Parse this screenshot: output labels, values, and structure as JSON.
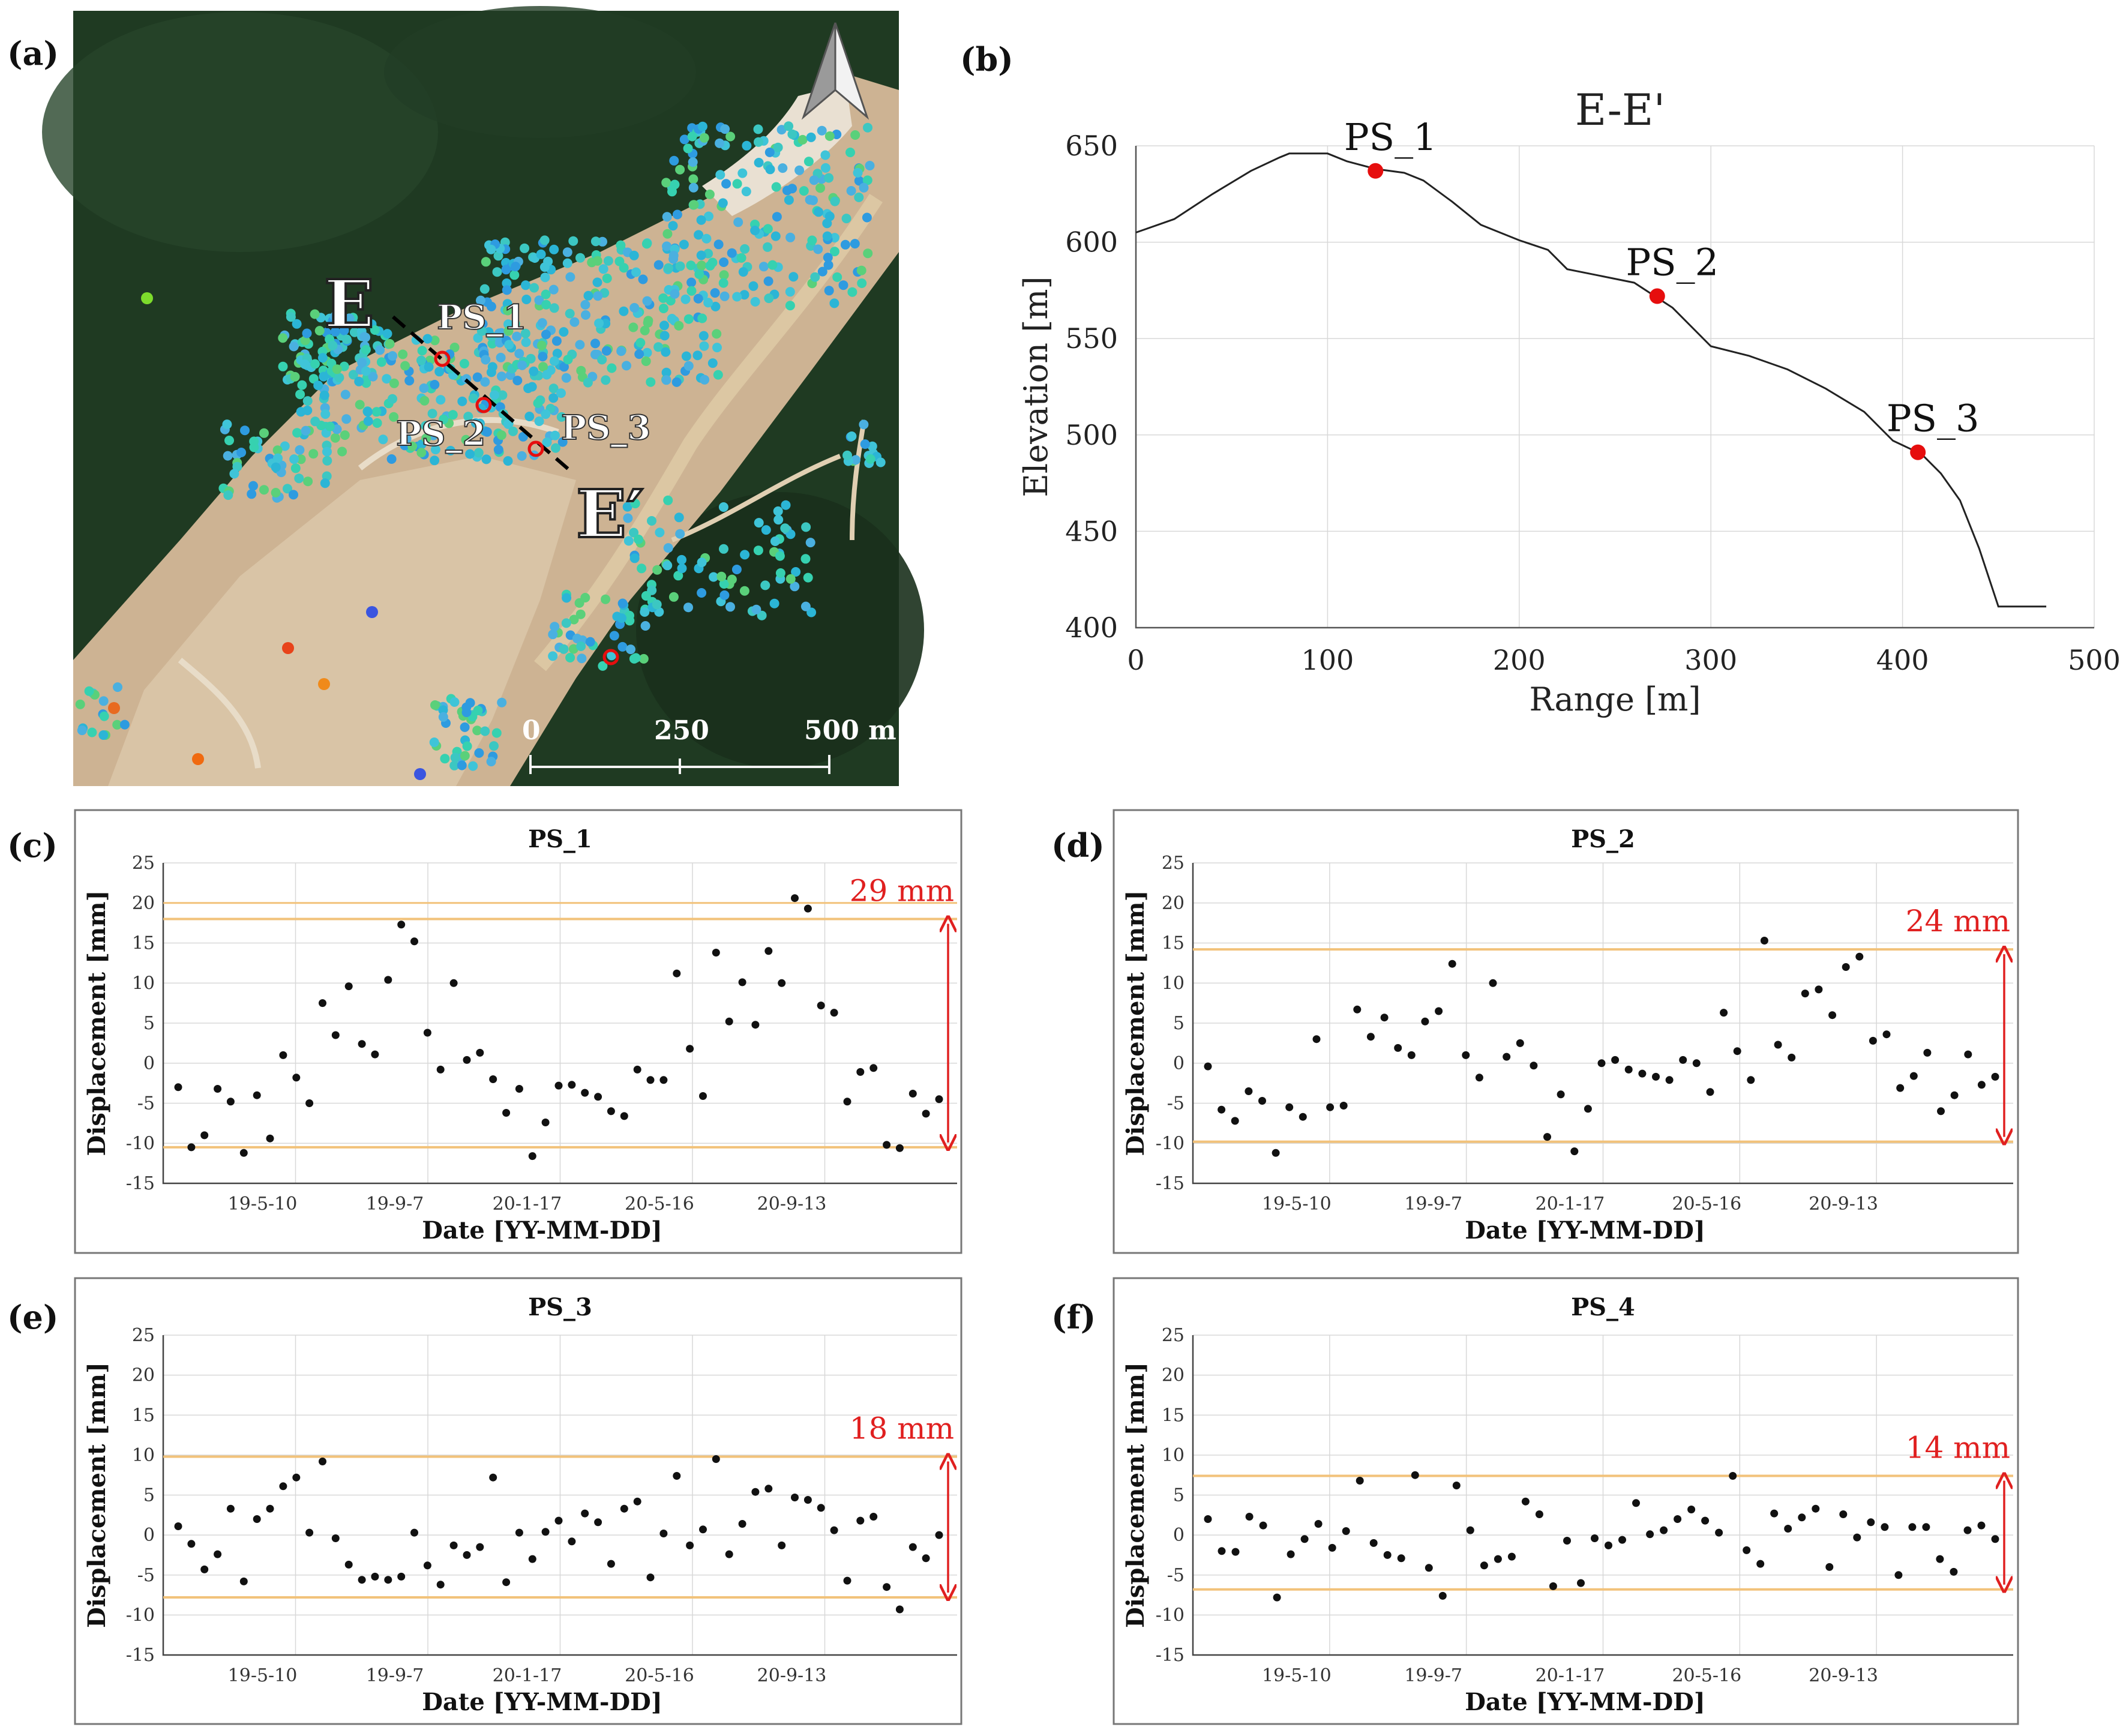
{
  "colors": {
    "accent_red": "#e02020",
    "band_orange": "#f2c27a",
    "grid": "#d8d8d8",
    "profile_line": "#222222",
    "marker_red": "#e60e0e"
  },
  "map_panel": {
    "label": "(a)",
    "section_start": "E",
    "section_end": "E′",
    "points": [
      "PS_1",
      "PS_2",
      "PS_3"
    ],
    "scale_labels": [
      "0",
      "250",
      "500 m"
    ],
    "north_icon": "north-arrow-icon"
  },
  "chart_data": [
    {
      "panel": "(b)",
      "type": "line",
      "title": "E-E'",
      "xlabel": "Range [m]",
      "ylabel": "Elevation [m]",
      "xlim": [
        0,
        500
      ],
      "ylim": [
        400,
        650
      ],
      "xticks": [
        0,
        100,
        200,
        300,
        400,
        500
      ],
      "yticks": [
        400,
        450,
        500,
        550,
        600,
        650
      ],
      "profile": {
        "x": [
          0,
          20,
          40,
          60,
          75,
          80,
          100,
          110,
          125,
          140,
          150,
          165,
          180,
          200,
          215,
          225,
          240,
          260,
          280,
          300,
          320,
          340,
          360,
          380,
          395,
          410,
          420,
          430,
          440,
          450,
          475
        ],
        "y": [
          605,
          612,
          625,
          637,
          644,
          646,
          646,
          642,
          638,
          636,
          632,
          621,
          609,
          601,
          596,
          586,
          583,
          579,
          566,
          546,
          541,
          534,
          524,
          512,
          497,
          490,
          480,
          466,
          441,
          411,
          411
        ]
      },
      "points": [
        {
          "name": "PS_1",
          "x": 125,
          "y": 637
        },
        {
          "name": "PS_2",
          "x": 272,
          "y": 572
        },
        {
          "name": "PS_3",
          "x": 408,
          "y": 491
        }
      ]
    },
    {
      "panel": "(c)",
      "type": "scatter",
      "title": "PS_1",
      "xlabel": "Date [YY-MM-DD]",
      "ylabel": "Displacement [mm]",
      "ylim": [
        -15,
        25
      ],
      "yticks": [
        -15,
        -10,
        -5,
        0,
        5,
        10,
        15,
        20,
        25
      ],
      "xticks": [
        "19-5-10",
        "19-9-7",
        "20-1-17",
        "20-5-16",
        "20-9-13"
      ],
      "band": [
        -10.5,
        18
      ],
      "band_label": "29 mm",
      "values": [
        -3,
        -10.5,
        -9,
        -3.2,
        -4.8,
        -11.2,
        -4,
        -9.4,
        1,
        -1.8,
        -5,
        7.5,
        3.5,
        9.6,
        2.4,
        1.1,
        10.4,
        17.3,
        15.2,
        3.8,
        -0.8,
        10,
        0.4,
        1.3,
        -2,
        -6.2,
        -3.2,
        -11.6,
        -7.4,
        -2.8,
        -2.7,
        -3.7,
        -4.2,
        -6,
        -6.6,
        -0.8,
        -2.1,
        -2.1,
        11.2,
        1.8,
        -4.1,
        13.8,
        5.2,
        10.1,
        4.8,
        14,
        10,
        20.6,
        19.3,
        7.2,
        6.3,
        -4.8,
        -1.1,
        -0.6,
        -10.2,
        -10.6,
        -3.8,
        -6.3,
        -4.5
      ]
    },
    {
      "panel": "(d)",
      "type": "scatter",
      "title": "PS_2",
      "xlabel": "Date [YY-MM-DD]",
      "ylabel": "Displacement [mm]",
      "ylim": [
        -15,
        25
      ],
      "yticks": [
        -15,
        -10,
        -5,
        0,
        5,
        10,
        15,
        20,
        25
      ],
      "xticks": [
        "19-5-10",
        "19-9-7",
        "20-1-17",
        "20-5-16",
        "20-9-13"
      ],
      "band": [
        -9.8,
        14.2
      ],
      "band_label": "24 mm",
      "values": [
        -0.4,
        -5.8,
        -7.2,
        -3.5,
        -4.7,
        -11.2,
        -5.5,
        -6.7,
        3,
        -5.5,
        -5.3,
        6.7,
        3.3,
        5.7,
        1.9,
        1,
        5.2,
        6.5,
        12.4,
        1,
        -1.8,
        10,
        0.8,
        2.5,
        -0.3,
        -9.2,
        -3.9,
        -11,
        -5.7,
        0,
        0.4,
        -0.8,
        -1.3,
        -1.7,
        -2.1,
        0.4,
        0,
        -3.6,
        6.3,
        1.5,
        -2.1,
        15.3,
        2.3,
        0.7,
        8.7,
        9.2,
        6,
        12,
        13.3,
        2.8,
        3.6,
        -3.1,
        -1.6,
        1.3,
        -6,
        -4,
        1.1,
        -2.7,
        -1.7
      ]
    },
    {
      "panel": "(e)",
      "type": "scatter",
      "title": "PS_3",
      "xlabel": "Date [YY-MM-DD]",
      "ylabel": "Displacement [mm]",
      "ylim": [
        -15,
        25
      ],
      "yticks": [
        -15,
        -10,
        -5,
        0,
        5,
        10,
        15,
        20,
        25
      ],
      "xticks": [
        "19-5-10",
        "19-9-7",
        "20-1-17",
        "20-5-16",
        "20-9-13"
      ],
      "band": [
        -7.8,
        9.8
      ],
      "band_label": "18 mm",
      "values": [
        1.1,
        -1.1,
        -4.3,
        -2.4,
        3.3,
        -5.8,
        2,
        3.3,
        6.1,
        7.2,
        0.3,
        9.2,
        -0.4,
        -3.7,
        -5.6,
        -5.2,
        -5.6,
        -5.2,
        0.3,
        -3.8,
        -6.2,
        -1.3,
        -2.5,
        -1.5,
        7.2,
        -5.9,
        0.3,
        -3,
        0.4,
        1.8,
        -0.8,
        2.7,
        1.6,
        -3.6,
        3.3,
        4.2,
        -5.3,
        0.2,
        7.4,
        -1.3,
        0.7,
        9.5,
        -2.4,
        1.4,
        5.4,
        5.8,
        -1.3,
        4.7,
        4.4,
        3.4,
        0.6,
        -5.7,
        1.8,
        2.3,
        -6.5,
        -9.3,
        -1.5,
        -2.9,
        0
      ]
    },
    {
      "panel": "(f)",
      "type": "scatter",
      "title": "PS_4",
      "xlabel": "Date [YY-MM-DD]",
      "ylabel": "Displacement [mm]",
      "ylim": [
        -15,
        25
      ],
      "yticks": [
        -15,
        -10,
        -5,
        0,
        5,
        10,
        15,
        20,
        25
      ],
      "xticks": [
        "19-5-10",
        "19-9-7",
        "20-1-17",
        "20-5-16",
        "20-9-13"
      ],
      "band": [
        -6.8,
        7.4
      ],
      "band_label": "14 mm",
      "values": [
        2,
        -2,
        -2.1,
        2.3,
        1.2,
        -7.8,
        -2.4,
        -0.5,
        1.4,
        -1.6,
        0.5,
        6.8,
        -1,
        -2.5,
        -2.9,
        7.5,
        -4.1,
        -7.6,
        6.2,
        0.6,
        -3.8,
        -3,
        -2.7,
        4.2,
        2.6,
        -6.4,
        -0.7,
        -6,
        -0.4,
        -1.3,
        -0.6,
        4,
        0.1,
        0.6,
        2,
        3.2,
        1.8,
        0.3,
        7.4,
        -1.9,
        -3.6,
        2.7,
        0.8,
        2.2,
        3.3,
        -4,
        2.6,
        -0.3,
        1.6,
        1,
        -5,
        1,
        1,
        -3,
        -4.6,
        0.6,
        1.2,
        -0.5
      ]
    }
  ]
}
